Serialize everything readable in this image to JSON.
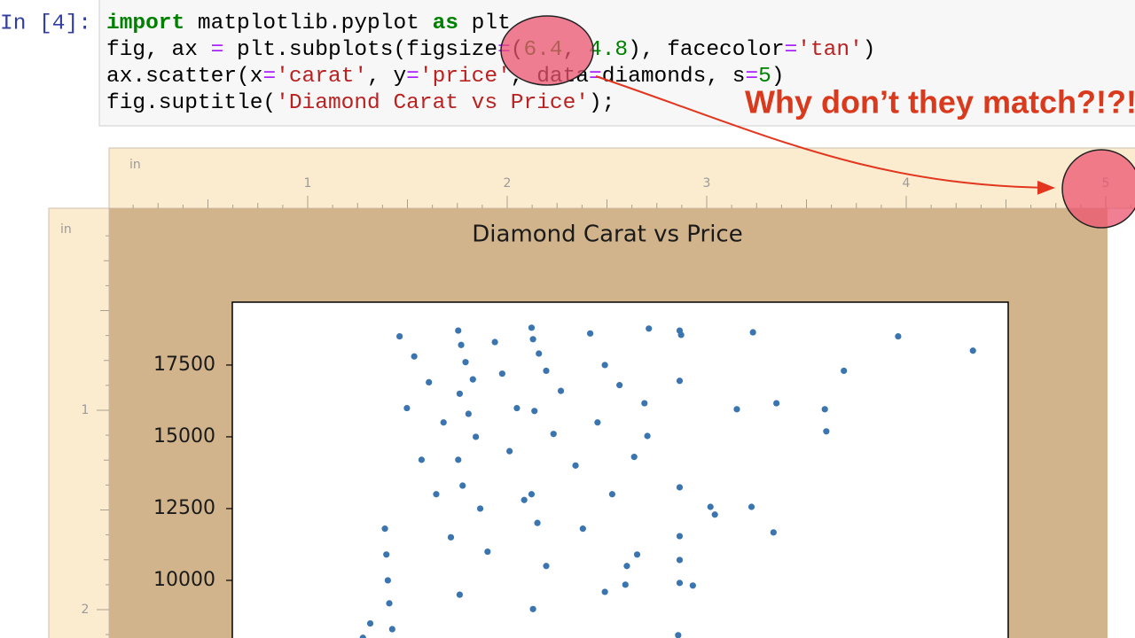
{
  "cell": {
    "prompt": "In [4]:",
    "code": [
      [
        {
          "text": "import",
          "color": "#008000",
          "bold": true
        },
        {
          "text": " matplotlib.pyplot ",
          "color": "#000000"
        },
        {
          "text": "as",
          "color": "#008000",
          "bold": true
        },
        {
          "text": " plt",
          "color": "#000000"
        }
      ],
      [
        {
          "text": "fig, ax ",
          "color": "#000000"
        },
        {
          "text": "=",
          "color": "#aa22ff"
        },
        {
          "text": " plt.subplots(figsize",
          "color": "#000000"
        },
        {
          "text": "=",
          "color": "#aa22ff"
        },
        {
          "text": "(",
          "color": "#000000"
        },
        {
          "text": "6.4",
          "color": "#008000"
        },
        {
          "text": ", ",
          "color": "#000000"
        },
        {
          "text": "4.8",
          "color": "#008000"
        },
        {
          "text": "), facecolor",
          "color": "#000000"
        },
        {
          "text": "=",
          "color": "#aa22ff"
        },
        {
          "text": "'tan'",
          "color": "#ba2121"
        },
        {
          "text": ")",
          "color": "#000000"
        }
      ],
      [
        {
          "text": "ax.scatter(x",
          "color": "#000000"
        },
        {
          "text": "=",
          "color": "#aa22ff"
        },
        {
          "text": "'carat'",
          "color": "#ba2121"
        },
        {
          "text": ", y",
          "color": "#000000"
        },
        {
          "text": "=",
          "color": "#aa22ff"
        },
        {
          "text": "'price'",
          "color": "#ba2121"
        },
        {
          "text": ", data",
          "color": "#000000"
        },
        {
          "text": "=",
          "color": "#aa22ff"
        },
        {
          "text": "diamonds, s",
          "color": "#000000"
        },
        {
          "text": "=",
          "color": "#aa22ff"
        },
        {
          "text": "5",
          "color": "#008000"
        },
        {
          "text": ")",
          "color": "#000000"
        }
      ],
      [
        {
          "text": "fig.suptitle(",
          "color": "#000000"
        },
        {
          "text": "'Diamond Carat vs Price'",
          "color": "#ba2121"
        },
        {
          "text": ");",
          "color": "#000000"
        }
      ]
    ]
  },
  "annotation": "Why don’t they match?!?!",
  "top_ruler": {
    "unit": "in",
    "labels": [
      "1",
      "2",
      "3",
      "4",
      "5"
    ]
  },
  "left_ruler": {
    "unit": "in",
    "labels": [
      "1",
      "2"
    ]
  },
  "chart_data": {
    "type": "scatter",
    "title": "Diamond Carat vs Price",
    "color": "#3a75b0",
    "xlim": [
      -0.0405,
      5.2505
    ],
    "ylim": [
      -700,
      19690
    ],
    "yticks": [
      10000,
      12500,
      15000,
      17500
    ],
    "x": [
      5.01,
      4.5,
      4.13,
      3.51,
      3.67,
      3.4,
      4.0,
      4.01,
      3.22,
      3.25,
      3.5,
      3.65,
      3.1,
      3.01,
      3.01,
      3.01,
      3.01,
      3.01,
      3.02,
      2.8,
      2.79,
      2.77,
      2.64,
      2.72,
      3.01,
      3.0,
      1.5,
      1.52,
      1.55,
      1.6,
      1.51,
      1.57,
      1.62,
      1.5,
      1.53,
      1.65,
      1.7,
      1.51,
      2.0,
      2.01,
      2.05,
      2.1,
      2.2,
      2.02,
      2.15,
      2.3,
      2.0,
      2.04,
      2.1,
      2.01,
      1.0,
      1.01,
      1.02,
      1.03,
      1.05,
      1.1,
      1.2,
      1.3,
      1.4,
      1.25,
      1.35,
      1.45,
      1.15,
      0.9,
      0.85,
      1.75,
      1.8,
      1.9,
      1.85,
      1.95,
      2.4,
      2.5,
      2.6,
      2.45,
      2.7,
      2.55,
      2.35,
      2.65,
      2.5
    ],
    "y": [
      18000,
      18500,
      17300,
      18640,
      16170,
      15960,
      15960,
      15190,
      12560,
      12290,
      12560,
      11670,
      9820,
      18700,
      16950,
      13240,
      11540,
      10710,
      18550,
      18770,
      15030,
      16170,
      9850,
      10900,
      9910,
      8090,
      18700,
      18200,
      17600,
      17000,
      16500,
      15800,
      15000,
      14200,
      13300,
      12500,
      11000,
      9500,
      18800,
      18400,
      17900,
      17300,
      16600,
      15900,
      15100,
      14000,
      13000,
      12000,
      10500,
      9000,
      11800,
      10900,
      10000,
      9200,
      8300,
      18500,
      17800,
      16900,
      15500,
      14200,
      13000,
      11500,
      16000,
      8500,
      8000,
      18300,
      17200,
      16000,
      14500,
      12800,
      18600,
      17500,
      16800,
      15500,
      14300,
      13000,
      11800,
      10500,
      9600
    ]
  }
}
